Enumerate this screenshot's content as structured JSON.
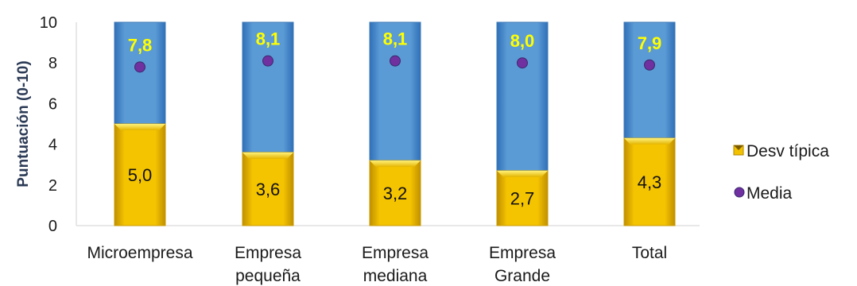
{
  "chart_data": {
    "type": "bar",
    "title": "",
    "xlabel": "",
    "ylabel": "Puntuación (0-10)",
    "ylim": [
      0,
      10
    ],
    "yticks": [
      0,
      2,
      4,
      6,
      8,
      10
    ],
    "categories": [
      [
        "Microempresa"
      ],
      [
        "Empresa",
        "pequeña"
      ],
      [
        "Empresa",
        "mediana"
      ],
      [
        "Empresa",
        "Grande"
      ],
      [
        "Total"
      ]
    ],
    "series": [
      {
        "name": "Desv típica",
        "values": [
          5.0,
          3.6,
          3.2,
          2.7,
          4.3
        ],
        "labels": [
          "5,0",
          "3,6",
          "3,2",
          "2,7",
          "4,3"
        ]
      },
      {
        "name": "Media",
        "values": [
          7.8,
          8.1,
          8.1,
          8.0,
          7.9
        ],
        "labels": [
          "7,8",
          "8,1",
          "8,1",
          "8,0",
          "7,9"
        ]
      }
    ],
    "legend_position": "right",
    "grid": false,
    "colors": {
      "sd_fill": "#f2c200",
      "bar_fill": "#5b9bd5",
      "mean_marker": "#7030a0",
      "mean_label": "#ffff00"
    }
  }
}
